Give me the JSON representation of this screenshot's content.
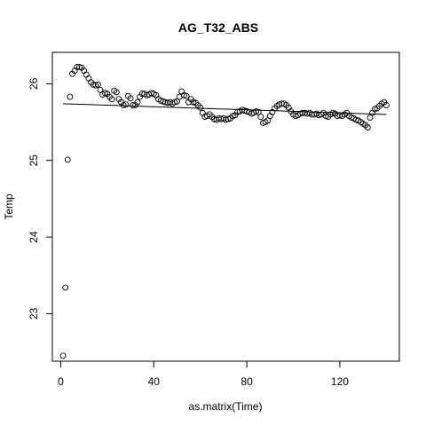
{
  "chart_data": {
    "type": "scatter",
    "title": "AG_T32_ABS",
    "xlabel": "as.matrix(Time)",
    "ylabel": "Temp",
    "xlim": [
      -3.6,
      145.6
    ],
    "ylim": [
      22.38,
      26.41
    ],
    "xticks": [
      0,
      40,
      80,
      120
    ],
    "yticks": [
      23,
      24,
      25,
      26
    ],
    "grid": false,
    "legend": "none",
    "series": [
      {
        "points": [
          [
            1,
            22.45
          ],
          [
            2,
            23.34
          ],
          [
            3,
            25.01
          ],
          [
            4,
            25.83
          ],
          [
            5,
            26.13
          ],
          [
            6,
            26.17
          ],
          [
            7,
            26.22
          ],
          [
            8,
            26.22
          ],
          [
            9,
            26.21
          ],
          [
            10,
            26.17
          ],
          [
            11,
            26.12
          ],
          [
            12,
            26.07
          ],
          [
            13,
            26.02
          ],
          [
            14,
            25.99
          ],
          [
            15,
            25.98
          ],
          [
            16,
            25.99
          ],
          [
            17,
            25.92
          ],
          [
            18,
            25.86
          ],
          [
            19,
            25.88
          ],
          [
            20,
            25.87
          ],
          [
            21,
            25.83
          ],
          [
            22,
            25.8
          ],
          [
            23,
            25.91
          ],
          [
            24,
            25.89
          ],
          [
            25,
            25.8
          ],
          [
            26,
            25.76
          ],
          [
            27,
            25.72
          ],
          [
            28,
            25.73
          ],
          [
            29,
            25.84
          ],
          [
            30,
            25.81
          ],
          [
            31,
            25.72
          ],
          [
            32,
            25.72
          ],
          [
            33,
            25.76
          ],
          [
            34,
            25.83
          ],
          [
            35,
            25.87
          ],
          [
            36,
            25.87
          ],
          [
            37,
            25.85
          ],
          [
            38,
            25.86
          ],
          [
            39,
            25.88
          ],
          [
            40,
            25.87
          ],
          [
            41,
            25.85
          ],
          [
            42,
            25.8
          ],
          [
            43,
            25.78
          ],
          [
            44,
            25.77
          ],
          [
            45,
            25.76
          ],
          [
            46,
            25.75
          ],
          [
            47,
            25.76
          ],
          [
            48,
            25.74
          ],
          [
            49,
            25.76
          ],
          [
            50,
            25.77
          ],
          [
            51,
            25.83
          ],
          [
            52,
            25.9
          ],
          [
            53,
            25.85
          ],
          [
            54,
            25.84
          ],
          [
            55,
            25.76
          ],
          [
            56,
            25.8
          ],
          [
            57,
            25.76
          ],
          [
            58,
            25.75
          ],
          [
            59,
            25.72
          ],
          [
            60,
            25.69
          ],
          [
            61,
            25.62
          ],
          [
            62,
            25.57
          ],
          [
            63,
            25.58
          ],
          [
            64,
            25.6
          ],
          [
            65,
            25.57
          ],
          [
            66,
            25.54
          ],
          [
            67,
            25.53
          ],
          [
            68,
            25.55
          ],
          [
            69,
            25.54
          ],
          [
            70,
            25.55
          ],
          [
            71,
            25.53
          ],
          [
            72,
            25.54
          ],
          [
            73,
            25.55
          ],
          [
            74,
            25.58
          ],
          [
            75,
            25.59
          ],
          [
            76,
            25.63
          ],
          [
            77,
            25.64
          ],
          [
            78,
            25.66
          ],
          [
            79,
            25.65
          ],
          [
            80,
            25.64
          ],
          [
            81,
            25.63
          ],
          [
            82,
            25.61
          ],
          [
            83,
            25.62
          ],
          [
            84,
            25.64
          ],
          [
            85,
            25.63
          ],
          [
            86,
            25.57
          ],
          [
            87,
            25.49
          ],
          [
            88,
            25.5
          ],
          [
            89,
            25.52
          ],
          [
            90,
            25.58
          ],
          [
            91,
            25.63
          ],
          [
            92,
            25.68
          ],
          [
            93,
            25.71
          ],
          [
            94,
            25.73
          ],
          [
            95,
            25.74
          ],
          [
            96,
            25.74
          ],
          [
            97,
            25.72
          ],
          [
            98,
            25.69
          ],
          [
            99,
            25.64
          ],
          [
            100,
            25.6
          ],
          [
            101,
            25.58
          ],
          [
            102,
            25.59
          ],
          [
            103,
            25.61
          ],
          [
            104,
            25.62
          ],
          [
            105,
            25.62
          ],
          [
            106,
            25.61
          ],
          [
            107,
            25.62
          ],
          [
            108,
            25.6
          ],
          [
            109,
            25.6
          ],
          [
            110,
            25.61
          ],
          [
            111,
            25.59
          ],
          [
            112,
            25.6
          ],
          [
            113,
            25.62
          ],
          [
            114,
            25.58
          ],
          [
            115,
            25.57
          ],
          [
            116,
            25.6
          ],
          [
            117,
            25.62
          ],
          [
            118,
            25.61
          ],
          [
            119,
            25.58
          ],
          [
            120,
            25.59
          ],
          [
            121,
            25.58
          ],
          [
            122,
            25.6
          ],
          [
            123,
            25.62
          ],
          [
            124,
            25.58
          ],
          [
            125,
            25.56
          ],
          [
            126,
            25.55
          ],
          [
            127,
            25.53
          ],
          [
            128,
            25.52
          ],
          [
            129,
            25.5
          ],
          [
            130,
            25.48
          ],
          [
            131,
            25.46
          ],
          [
            132,
            25.43
          ],
          [
            133,
            25.56
          ],
          [
            134,
            25.62
          ],
          [
            135,
            25.67
          ],
          [
            136,
            25.68
          ],
          [
            137,
            25.71
          ],
          [
            138,
            25.74
          ],
          [
            139,
            25.76
          ],
          [
            140,
            25.72
          ]
        ]
      }
    ],
    "trendline": {
      "x": [
        1,
        140
      ],
      "y": [
        25.74,
        25.6
      ]
    }
  }
}
